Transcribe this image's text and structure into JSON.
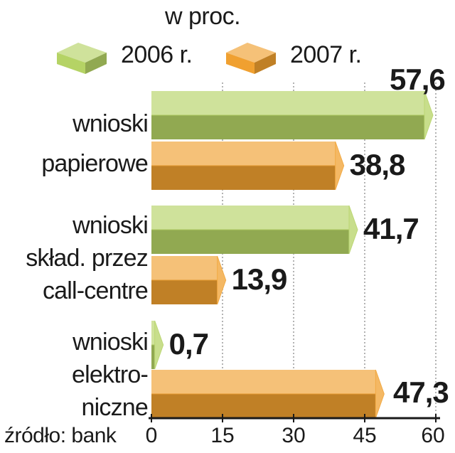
{
  "chart_data": {
    "type": "bar",
    "orientation": "horizontal",
    "unit_label": "w proc.",
    "categories": [
      [
        "wnioski",
        "papierowe"
      ],
      [
        "wnioski",
        "skład. przez",
        "call-centre"
      ],
      [
        "wnioski",
        "elektro-",
        "niczne"
      ]
    ],
    "series": [
      {
        "name": "2006 r.",
        "values": [
          57.6,
          41.7,
          0.7
        ],
        "value_labels": [
          "57,6",
          "41,7",
          "0,7"
        ],
        "color": "#b5d365"
      },
      {
        "name": "2007 r.",
        "values": [
          38.8,
          13.9,
          47.3
        ],
        "value_labels": [
          "38,8",
          "13,9",
          "47,3"
        ],
        "color": "#f0a030"
      }
    ],
    "xlim": [
      0,
      60
    ],
    "xticks": [
      0,
      15,
      30,
      45,
      60
    ],
    "grid": true,
    "legend": "top",
    "source": "źródło: bank"
  }
}
